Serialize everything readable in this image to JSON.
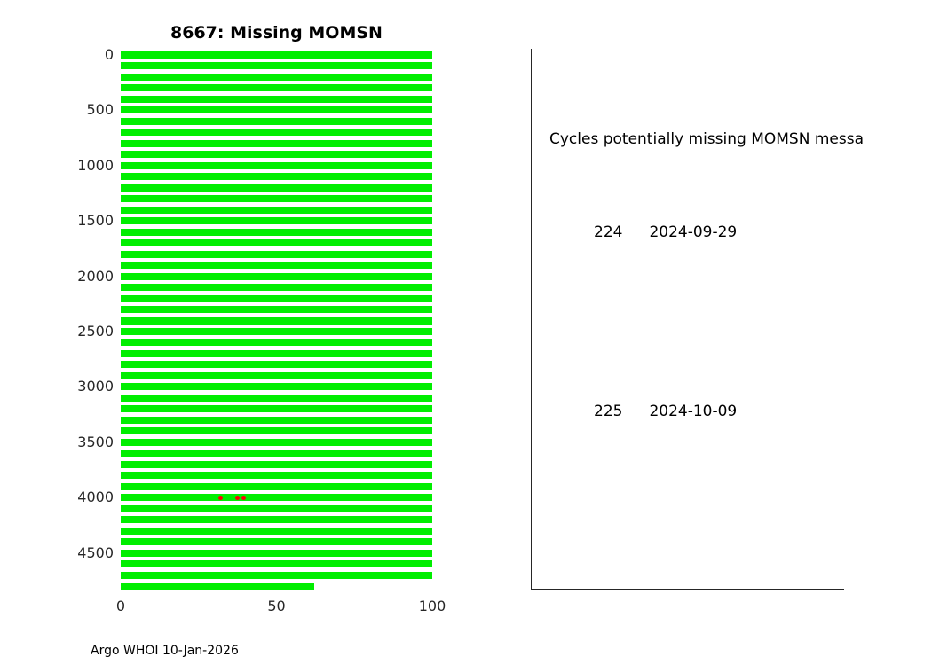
{
  "chart_data": {
    "type": "scatter",
    "title": "8667: Missing MOMSN",
    "xlabel": "",
    "ylabel": "",
    "xlim": [
      0,
      100
    ],
    "ylim": [
      0,
      4816
    ],
    "y_axis_inverted": true,
    "xticks": [
      0,
      50,
      100
    ],
    "yticks": [
      0,
      500,
      1000,
      1500,
      2000,
      2500,
      3000,
      3500,
      4000,
      4500
    ],
    "band_color": "#00ee00",
    "marker_px": 8,
    "bands": {
      "x_range": [
        0,
        100
      ],
      "y_centers": [
        0,
        100,
        200,
        300,
        400,
        500,
        600,
        700,
        800,
        900,
        1000,
        1100,
        1200,
        1300,
        1400,
        1500,
        1600,
        1700,
        1800,
        1900,
        2000,
        2100,
        2200,
        2300,
        2400,
        2500,
        2600,
        2700,
        2800,
        2900,
        3000,
        3100,
        3200,
        3300,
        3400,
        3500,
        3600,
        3700,
        3800,
        3900,
        4000,
        4100,
        4200,
        4300,
        4400,
        4500,
        4600,
        4700
      ],
      "partial_band": {
        "y": 4800,
        "x_range": [
          0,
          62
        ]
      }
    },
    "missing_points": {
      "color": "#ff0000",
      "points": [
        {
          "x": 32,
          "y": 4000
        },
        {
          "x": 37.5,
          "y": 4000
        },
        {
          "x": 39.5,
          "y": 4000
        }
      ]
    }
  },
  "panel": {
    "heading": "Cycles potentially missing MOMSN messa",
    "entries": [
      {
        "cycle": "224",
        "date": "2024-09-29"
      },
      {
        "cycle": "225",
        "date": "2024-10-09"
      }
    ]
  },
  "footer": {
    "text": "Argo WHOI 10-Jan-2026"
  }
}
